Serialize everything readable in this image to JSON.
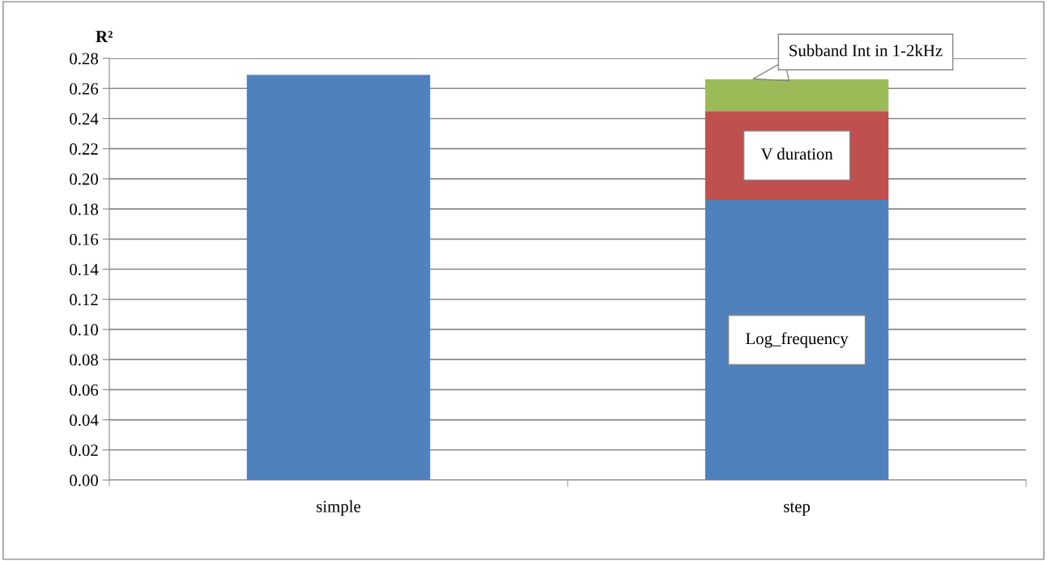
{
  "chart_data": {
    "type": "bar",
    "stacked": true,
    "ylabel": "R²",
    "categories": [
      "simple",
      "step"
    ],
    "series": [
      {
        "name": "Log_frequency",
        "color": "#4f81bd",
        "values": [
          0.269,
          0.186
        ]
      },
      {
        "name": "V duration",
        "color": "#c0504d",
        "values": [
          null,
          0.059
        ]
      },
      {
        "name": "Subband Int in 1-2kHz",
        "color": "#9bbb59",
        "values": [
          null,
          0.021
        ]
      }
    ],
    "ylim": [
      0,
      0.28
    ],
    "yticks": [
      {
        "value": 0,
        "label": "0.00"
      },
      {
        "value": 0.02,
        "label": "0.02"
      },
      {
        "value": 0.04,
        "label": "0.04"
      },
      {
        "value": 0.06,
        "label": "0.06"
      },
      {
        "value": 0.08,
        "label": "0.08"
      },
      {
        "value": 0.1,
        "label": "0.10"
      },
      {
        "value": 0.12,
        "label": "0.12"
      },
      {
        "value": 0.14,
        "label": "0.14"
      },
      {
        "value": 0.16,
        "label": "0.16"
      },
      {
        "value": 0.18,
        "label": "0.18"
      },
      {
        "value": 0.2,
        "label": "0.20"
      },
      {
        "value": 0.22,
        "label": "0.22"
      },
      {
        "value": 0.24,
        "label": "0.24"
      },
      {
        "value": 0.26,
        "label": "0.26"
      },
      {
        "value": 0.28,
        "label": "0.28"
      }
    ],
    "grid": "y",
    "legend": false
  }
}
